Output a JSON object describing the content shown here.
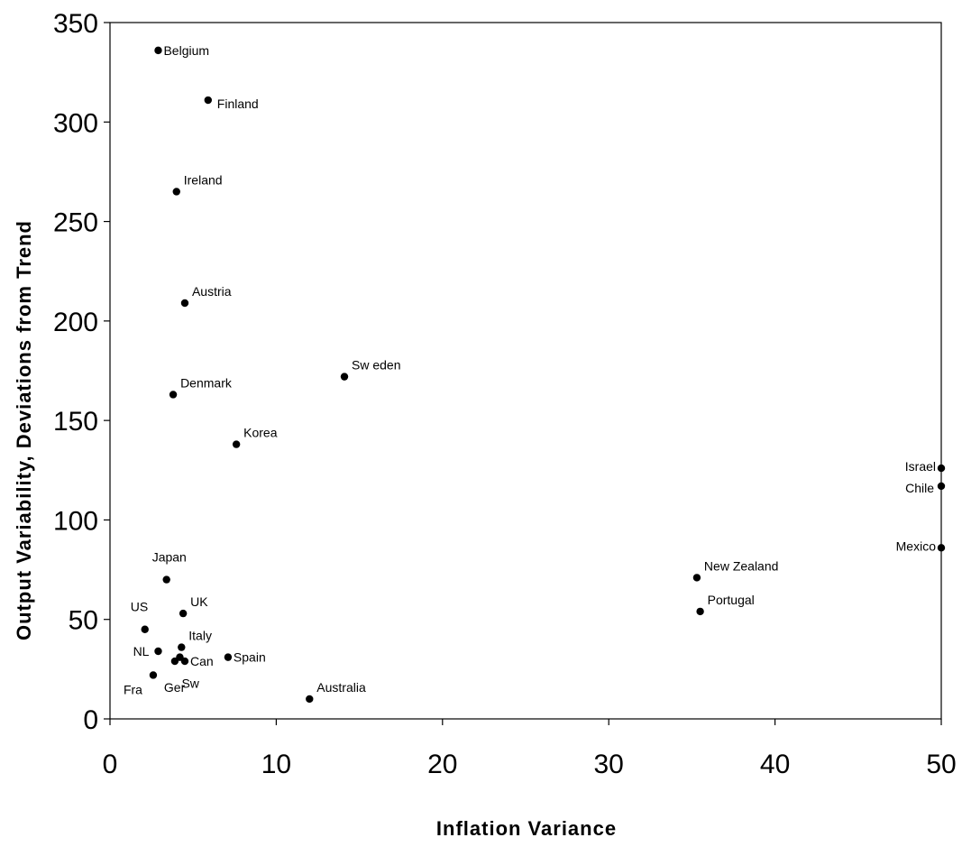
{
  "chart_data": {
    "type": "scatter",
    "title": "",
    "xlabel": "Inflation Variance",
    "ylabel": "Output Variability, Deviations from Trend",
    "xlim": [
      0,
      50
    ],
    "ylim": [
      0,
      350
    ],
    "x_ticks": [
      0,
      10,
      20,
      30,
      40,
      50
    ],
    "y_ticks": [
      0,
      50,
      100,
      150,
      200,
      250,
      300,
      350
    ],
    "grid": false,
    "legend": "none",
    "marker_color": "#000000",
    "points": [
      {
        "label": "Belgium",
        "x": 2.9,
        "y": 336,
        "label_pos": "right"
      },
      {
        "label": "Finland",
        "x": 5.9,
        "y": 311,
        "label_pos": "right-below"
      },
      {
        "label": "Ireland",
        "x": 4.0,
        "y": 265,
        "label_pos": "above-right"
      },
      {
        "label": "Austria",
        "x": 4.5,
        "y": 209,
        "label_pos": "above-right"
      },
      {
        "label": "Sw eden",
        "x": 14.1,
        "y": 172,
        "label_pos": "above-right"
      },
      {
        "label": "Denmark",
        "x": 3.8,
        "y": 163,
        "label_pos": "above-right"
      },
      {
        "label": "Korea",
        "x": 7.6,
        "y": 138,
        "label_pos": "above-right"
      },
      {
        "label": "Israel",
        "x": 50.0,
        "y": 126,
        "label_pos": "left"
      },
      {
        "label": "Chile",
        "x": 50.0,
        "y": 117,
        "label_pos": "left-below"
      },
      {
        "label": "Mexico",
        "x": 50.0,
        "y": 86,
        "label_pos": "left"
      },
      {
        "label": "New  Zealand",
        "x": 35.3,
        "y": 71,
        "label_pos": "above-right"
      },
      {
        "label": "Japan",
        "x": 3.4,
        "y": 70,
        "label_pos": "above-left"
      },
      {
        "label": "Portugal",
        "x": 35.5,
        "y": 54,
        "label_pos": "above-right"
      },
      {
        "label": "UK",
        "x": 4.4,
        "y": 53,
        "label_pos": "above-right"
      },
      {
        "label": "US",
        "x": 2.1,
        "y": 45,
        "label_pos": "above-left"
      },
      {
        "label": "Italy",
        "x": 4.3,
        "y": 36,
        "label_pos": "above-right"
      },
      {
        "label": "NL",
        "x": 2.9,
        "y": 34,
        "label_pos": "below-left"
      },
      {
        "label": "Spain",
        "x": 7.1,
        "y": 31,
        "label_pos": "right"
      },
      {
        "label": "Can",
        "x": 4.5,
        "y": 29,
        "label_pos": "right"
      },
      {
        "label": "Ger",
        "x": 3.9,
        "y": 29,
        "label_pos": "below"
      },
      {
        "label": "Sw",
        "x": 4.2,
        "y": 31,
        "label_pos": "below-right"
      },
      {
        "label": "Fra",
        "x": 2.6,
        "y": 22,
        "label_pos": "below-left"
      },
      {
        "label": "Australia",
        "x": 12.0,
        "y": 10,
        "label_pos": "above-right"
      }
    ]
  }
}
